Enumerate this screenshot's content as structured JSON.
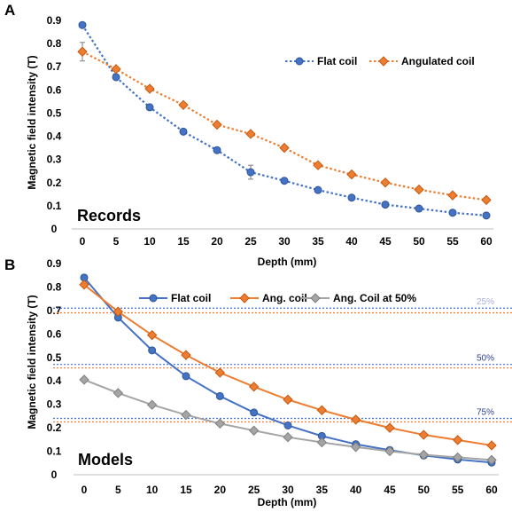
{
  "chart_data": [
    {
      "panel": "A",
      "type": "line",
      "label": "Records",
      "xlabel": "Depth (mm)",
      "ylabel": "Magnetic field intensity (T)",
      "x": [
        0,
        5,
        10,
        15,
        20,
        25,
        30,
        35,
        40,
        45,
        50,
        55,
        60
      ],
      "xlim": [
        0,
        60
      ],
      "ylim": [
        0,
        0.9
      ],
      "yticks": [
        "0",
        "0.1",
        "0.2",
        "0.3",
        "0.4",
        "0.5",
        "0.6",
        "0.7",
        "0.8",
        "0.9"
      ],
      "grid": false,
      "legend_position": "top-right",
      "series": [
        {
          "name": "Flat coil",
          "color": "#4472C4",
          "marker": "circle",
          "line": "dotted",
          "values": [
            0.88,
            0.655,
            0.525,
            0.42,
            0.34,
            0.245,
            0.208,
            0.168,
            0.135,
            0.105,
            0.088,
            0.07,
            0.058
          ],
          "errors": [
            0,
            0,
            0,
            0,
            0,
            0.03,
            0,
            0,
            0,
            0,
            0,
            0,
            0
          ]
        },
        {
          "name": "Angulated coil",
          "color": "#ED7D31",
          "marker": "diamond",
          "line": "dotted",
          "values": [
            0.765,
            0.69,
            0.605,
            0.535,
            0.45,
            0.41,
            0.35,
            0.275,
            0.235,
            0.2,
            0.17,
            0.145,
            0.125
          ],
          "errors": [
            0.04,
            0,
            0,
            0,
            0,
            0,
            0,
            0,
            0,
            0,
            0,
            0,
            0
          ]
        }
      ]
    },
    {
      "panel": "B",
      "type": "line",
      "label": "Models",
      "xlabel": "Depth (mm)",
      "ylabel": "Magnetic field intensity (T)",
      "x": [
        0,
        5,
        10,
        15,
        20,
        25,
        30,
        35,
        40,
        45,
        50,
        55,
        60
      ],
      "xlim": [
        0,
        60
      ],
      "ylim": [
        0,
        0.9
      ],
      "yticks": [
        "0",
        "0.1",
        "0.2",
        "0.3",
        "0.4",
        "0.5",
        "0.6",
        "0.7",
        "0.8",
        "0.9"
      ],
      "grid": false,
      "legend_position": "top-center",
      "series": [
        {
          "name": "Flat coil",
          "color": "#4472C4",
          "marker": "circle",
          "line": "solid",
          "values": [
            0.84,
            0.67,
            0.53,
            0.42,
            0.335,
            0.265,
            0.21,
            0.165,
            0.13,
            0.105,
            0.082,
            0.065,
            0.052
          ]
        },
        {
          "name": "Ang. coil",
          "color": "#ED7D31",
          "marker": "diamond",
          "line": "solid",
          "values": [
            0.81,
            0.695,
            0.595,
            0.51,
            0.435,
            0.375,
            0.32,
            0.275,
            0.235,
            0.2,
            0.17,
            0.148,
            0.125
          ]
        },
        {
          "name": "Ang. Coil at 50%",
          "color": "#A5A5A5",
          "marker": "diamond",
          "line": "solid",
          "values": [
            0.405,
            0.348,
            0.298,
            0.255,
            0.218,
            0.188,
            0.16,
            0.138,
            0.118,
            0.1,
            0.085,
            0.074,
            0.063
          ]
        }
      ],
      "reference_lines": [
        {
          "label": "25%",
          "label_color": "#A6AFD8",
          "flat": 0.71,
          "angulated": 0.69
        },
        {
          "label": "50%",
          "label_color": "#2E3E8C",
          "flat": 0.47,
          "angulated": 0.455
        },
        {
          "label": "75%",
          "label_color": "#2E3E8C",
          "flat": 0.24,
          "angulated": 0.225
        }
      ]
    }
  ]
}
